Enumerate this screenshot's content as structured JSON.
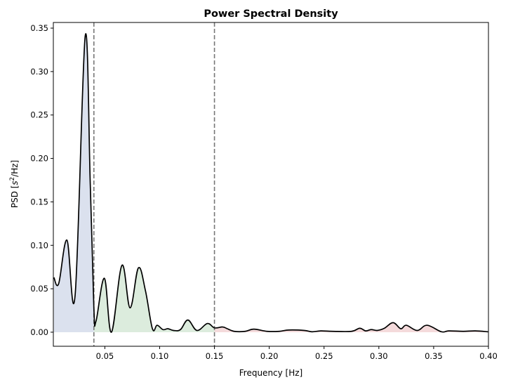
{
  "chart_data": {
    "type": "line",
    "title": "Power Spectral Density",
    "xlabel": "Frequency [Hz]",
    "ylabel_prefix": "PSD [",
    "ylabel_var": "s",
    "ylabel_sup": "2",
    "ylabel_suffix": "/Hz]",
    "xlim": [
      0.003,
      0.4
    ],
    "ylim": [
      -0.0162,
      0.3565
    ],
    "xticks": [
      0.05,
      0.1,
      0.15,
      0.2,
      0.25,
      0.3,
      0.35,
      0.4
    ],
    "xtick_labels": [
      "0.05",
      "0.10",
      "0.15",
      "0.20",
      "0.25",
      "0.30",
      "0.35",
      "0.40"
    ],
    "yticks": [
      0.0,
      0.05,
      0.1,
      0.15,
      0.2,
      0.25,
      0.3,
      0.35
    ],
    "ytick_labels": [
      "0.00",
      "0.05",
      "0.10",
      "0.15",
      "0.20",
      "0.25",
      "0.30",
      "0.35"
    ],
    "grid": false,
    "line_color": "#000000",
    "band_boundaries": [
      0.04,
      0.15
    ],
    "boundary_line_color": "#777777",
    "bands": [
      {
        "range": [
          0.003,
          0.04
        ],
        "color": "#dbe1ee"
      },
      {
        "range": [
          0.04,
          0.15
        ],
        "color": "#dcecdd"
      },
      {
        "range": [
          0.15,
          0.4
        ],
        "color": "#f4dadb"
      }
    ],
    "x": [
      0.0035,
      0.0079,
      0.0154,
      0.0229,
      0.0321,
      0.0367,
      0.04,
      0.042,
      0.0496,
      0.056,
      0.0656,
      0.073,
      0.0806,
      0.087,
      0.0934,
      0.0977,
      0.103,
      0.1075,
      0.1126,
      0.119,
      0.1258,
      0.134,
      0.1436,
      0.15,
      0.1575,
      0.1617,
      0.168,
      0.178,
      0.186,
      0.198,
      0.209,
      0.218,
      0.232,
      0.239,
      0.247,
      0.258,
      0.275,
      0.2825,
      0.288,
      0.293,
      0.2985,
      0.305,
      0.313,
      0.32,
      0.325,
      0.335,
      0.344,
      0.357,
      0.3637,
      0.377,
      0.388,
      0.3996
    ],
    "y": [
      0.063,
      0.056,
      0.106,
      0.043,
      0.341,
      0.17,
      0.027,
      0.013,
      0.062,
      0.0,
      0.077,
      0.028,
      0.074,
      0.048,
      0.004,
      0.008,
      0.003,
      0.004,
      0.002,
      0.003,
      0.014,
      0.002,
      0.01,
      0.005,
      0.006,
      0.004,
      0.001,
      0.001,
      0.0035,
      0.001,
      0.001,
      0.0025,
      0.002,
      0.0005,
      0.0015,
      0.001,
      0.001,
      0.0045,
      0.0015,
      0.003,
      0.002,
      0.0045,
      0.011,
      0.004,
      0.008,
      0.002,
      0.008,
      0.0005,
      0.0015,
      0.001,
      0.0015,
      0.0005
    ]
  }
}
